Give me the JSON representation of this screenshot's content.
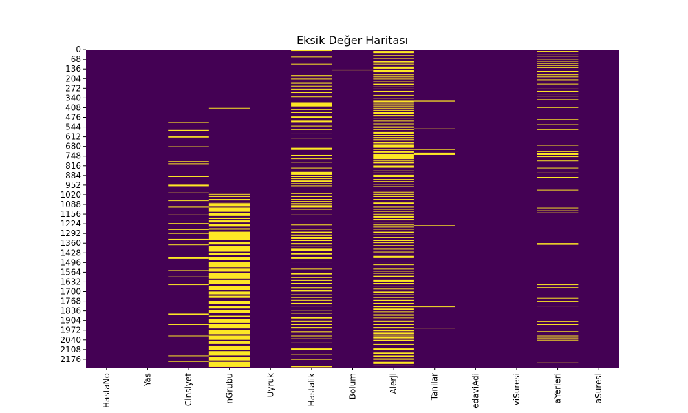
{
  "chart_data": {
    "type": "heatmap",
    "title": "Eksik Değer Haritası",
    "xlabel": "",
    "ylabel": "",
    "columns": [
      "HastaNo",
      "Yas",
      "Cinsiyet",
      "KanGrubu",
      "Uyruk",
      "KronikHastalik",
      "Bolum",
      "Alerji",
      "Tanilar",
      "TedaviAdi",
      "TedaviSuresi",
      "UygulamaYerleri",
      "UygulamaSuresi"
    ],
    "x_tick_labels_visible": [
      "HastaNo",
      "Yas",
      "Cinsiyet",
      "nGrubu",
      "Uyruk",
      "Hastalik",
      "Bolum",
      "Alerji",
      "Tanilar",
      "edaviAdi",
      "viSuresi",
      "aYerleri",
      "aSuresi"
    ],
    "y_tick_labels": [
      "0",
      "68",
      "136",
      "204",
      "272",
      "340",
      "408",
      "476",
      "544",
      "612",
      "680",
      "748",
      "816",
      "884",
      "952",
      "1020",
      "1088",
      "1156",
      "1224",
      "1292",
      "1360",
      "1428",
      "1496",
      "1564",
      "1632",
      "1700",
      "1768",
      "1836",
      "1904",
      "1972",
      "2040",
      "2108",
      "2176"
    ],
    "n_rows": 2235,
    "colors": {
      "present": "#440154",
      "missing": "#fde725"
    },
    "missing_ranges": {
      "HastaNo": [],
      "Yas": [],
      "Cinsiyet": [
        [
          510,
          513
        ],
        [
          565,
          575
        ],
        [
          610,
          618
        ],
        [
          680,
          683
        ],
        [
          785,
          788
        ],
        [
          800,
          803
        ],
        [
          890,
          893
        ],
        [
          950,
          960
        ],
        [
          1005,
          1010
        ],
        [
          1060,
          1063
        ],
        [
          1100,
          1110
        ],
        [
          1160,
          1163
        ],
        [
          1195,
          1198
        ],
        [
          1220,
          1225
        ],
        [
          1262,
          1265
        ],
        [
          1290,
          1293
        ],
        [
          1330,
          1340
        ],
        [
          1370,
          1373
        ],
        [
          1460,
          1470
        ],
        [
          1550,
          1553
        ],
        [
          1595,
          1598
        ],
        [
          1650,
          1653
        ],
        [
          1855,
          1865
        ],
        [
          1930,
          1933
        ],
        [
          2010,
          2013
        ],
        [
          2150,
          2153
        ],
        [
          2190,
          2193
        ]
      ],
      "KanGrubu": [
        [
          410,
          414
        ],
        [
          1015,
          1018
        ],
        [
          1030,
          1033
        ],
        [
          1040,
          1043
        ],
        [
          1050,
          1060
        ],
        [
          1070,
          1073
        ],
        [
          1080,
          1100
        ],
        [
          1110,
          1140
        ],
        [
          1150,
          1170
        ],
        [
          1180,
          1190
        ],
        [
          1200,
          1215
        ],
        [
          1225,
          1245
        ],
        [
          1255,
          1265
        ],
        [
          1280,
          1340
        ],
        [
          1350,
          1370
        ],
        [
          1380,
          1420
        ],
        [
          1430,
          1445
        ],
        [
          1460,
          1480
        ],
        [
          1490,
          1530
        ],
        [
          1540,
          1560
        ],
        [
          1570,
          1610
        ],
        [
          1620,
          1645
        ],
        [
          1660,
          1690
        ],
        [
          1700,
          1720
        ],
        [
          1730,
          1745
        ],
        [
          1770,
          1790
        ],
        [
          1800,
          1820
        ],
        [
          1830,
          1850
        ],
        [
          1870,
          1880
        ],
        [
          1895,
          1920
        ],
        [
          1930,
          1960
        ],
        [
          1970,
          2000
        ],
        [
          2010,
          2040
        ],
        [
          2050,
          2070
        ],
        [
          2080,
          2110
        ],
        [
          2120,
          2150
        ],
        [
          2160,
          2185
        ],
        [
          2195,
          2230
        ]
      ],
      "Uyruk": [],
      "KronikHastalik": [
        [
          5,
          10
        ],
        [
          50,
          55
        ],
        [
          100,
          103
        ],
        [
          180,
          190
        ],
        [
          205,
          210
        ],
        [
          230,
          240
        ],
        [
          255,
          260
        ],
        [
          275,
          285
        ],
        [
          300,
          305
        ],
        [
          330,
          335
        ],
        [
          370,
          400
        ],
        [
          420,
          425
        ],
        [
          440,
          443
        ],
        [
          470,
          480
        ],
        [
          500,
          510
        ],
        [
          535,
          540
        ],
        [
          560,
          565
        ],
        [
          590,
          595
        ],
        [
          620,
          625
        ],
        [
          690,
          705
        ],
        [
          740,
          745
        ],
        [
          765,
          768
        ],
        [
          790,
          795
        ],
        [
          830,
          835
        ],
        [
          860,
          880
        ],
        [
          890,
          895
        ],
        [
          905,
          910
        ],
        [
          920,
          930
        ],
        [
          940,
          945
        ],
        [
          955,
          960
        ],
        [
          1010,
          1013
        ],
        [
          1030,
          1035
        ],
        [
          1050,
          1055
        ],
        [
          1065,
          1070
        ],
        [
          1080,
          1090
        ],
        [
          1095,
          1110
        ],
        [
          1120,
          1125
        ],
        [
          1160,
          1165
        ],
        [
          1230,
          1235
        ],
        [
          1260,
          1265
        ],
        [
          1280,
          1290
        ],
        [
          1300,
          1310
        ],
        [
          1320,
          1330
        ],
        [
          1340,
          1345
        ],
        [
          1360,
          1370
        ],
        [
          1380,
          1385
        ],
        [
          1400,
          1415
        ],
        [
          1430,
          1440
        ],
        [
          1460,
          1470
        ],
        [
          1490,
          1495
        ],
        [
          1540,
          1545
        ],
        [
          1570,
          1580
        ],
        [
          1600,
          1605
        ],
        [
          1620,
          1625
        ],
        [
          1640,
          1645
        ],
        [
          1670,
          1680
        ],
        [
          1690,
          1700
        ],
        [
          1720,
          1725
        ],
        [
          1740,
          1745
        ],
        [
          1760,
          1765
        ],
        [
          1780,
          1790
        ],
        [
          1800,
          1805
        ],
        [
          1830,
          1835
        ],
        [
          1850,
          1855
        ],
        [
          1880,
          1890
        ],
        [
          1905,
          1915
        ],
        [
          1930,
          1935
        ],
        [
          1950,
          1960
        ],
        [
          1980,
          1990
        ],
        [
          2010,
          2015
        ],
        [
          2030,
          2035
        ],
        [
          2060,
          2065
        ],
        [
          2100,
          2110
        ],
        [
          2140,
          2145
        ],
        [
          2175,
          2180
        ],
        [
          2225,
          2232
        ]
      ],
      "Bolum": [
        [
          140,
          146
        ]
      ],
      "Alerji": [
        [
          10,
          25
        ],
        [
          40,
          45
        ],
        [
          60,
          65
        ],
        [
          80,
          90
        ],
        [
          100,
          105
        ],
        [
          120,
          135
        ],
        [
          145,
          160
        ],
        [
          175,
          180
        ],
        [
          190,
          195
        ],
        [
          205,
          210
        ],
        [
          220,
          225
        ],
        [
          240,
          250
        ],
        [
          260,
          265
        ],
        [
          275,
          280
        ],
        [
          290,
          300
        ],
        [
          310,
          315
        ],
        [
          320,
          325
        ],
        [
          340,
          345
        ],
        [
          360,
          370
        ],
        [
          380,
          385
        ],
        [
          395,
          400
        ],
        [
          410,
          415
        ],
        [
          425,
          430
        ],
        [
          440,
          450
        ],
        [
          460,
          470
        ],
        [
          480,
          485
        ],
        [
          500,
          505
        ],
        [
          520,
          525
        ],
        [
          540,
          550
        ],
        [
          560,
          565
        ],
        [
          580,
          590
        ],
        [
          600,
          605
        ],
        [
          615,
          625
        ],
        [
          630,
          640
        ],
        [
          650,
          660
        ],
        [
          665,
          690
        ],
        [
          700,
          705
        ],
        [
          715,
          725
        ],
        [
          735,
          770
        ],
        [
          780,
          785
        ],
        [
          790,
          800
        ],
        [
          815,
          830
        ],
        [
          850,
          855
        ],
        [
          865,
          870
        ],
        [
          880,
          885
        ],
        [
          890,
          895
        ],
        [
          910,
          915
        ],
        [
          925,
          930
        ],
        [
          945,
          950
        ],
        [
          960,
          965
        ],
        [
          1000,
          1005
        ],
        [
          1015,
          1020
        ],
        [
          1030,
          1035
        ],
        [
          1050,
          1055
        ],
        [
          1075,
          1085
        ],
        [
          1100,
          1110
        ],
        [
          1120,
          1125
        ],
        [
          1135,
          1140
        ],
        [
          1155,
          1160
        ],
        [
          1170,
          1180
        ],
        [
          1190,
          1200
        ],
        [
          1210,
          1215
        ],
        [
          1230,
          1235
        ],
        [
          1245,
          1250
        ],
        [
          1260,
          1265
        ],
        [
          1280,
          1290
        ],
        [
          1300,
          1305
        ],
        [
          1320,
          1325
        ],
        [
          1340,
          1345
        ],
        [
          1355,
          1360
        ],
        [
          1375,
          1380
        ],
        [
          1400,
          1405
        ],
        [
          1420,
          1425
        ],
        [
          1450,
          1465
        ],
        [
          1490,
          1495
        ],
        [
          1510,
          1515
        ],
        [
          1540,
          1545
        ],
        [
          1555,
          1560
        ],
        [
          1570,
          1575
        ],
        [
          1590,
          1600
        ],
        [
          1620,
          1630
        ],
        [
          1640,
          1650
        ],
        [
          1660,
          1665
        ],
        [
          1680,
          1685
        ],
        [
          1700,
          1710
        ],
        [
          1720,
          1725
        ],
        [
          1740,
          1745
        ],
        [
          1760,
          1770
        ],
        [
          1780,
          1785
        ],
        [
          1800,
          1810
        ],
        [
          1820,
          1830
        ],
        [
          1840,
          1845
        ],
        [
          1860,
          1870
        ],
        [
          1880,
          1885
        ],
        [
          1890,
          1895
        ],
        [
          1905,
          1915
        ],
        [
          1930,
          1935
        ],
        [
          1950,
          1960
        ],
        [
          1970,
          1980
        ],
        [
          1990,
          2000
        ],
        [
          2010,
          2015
        ],
        [
          2020,
          2030
        ],
        [
          2040,
          2050
        ],
        [
          2070,
          2075
        ],
        [
          2100,
          2110
        ],
        [
          2130,
          2140
        ],
        [
          2150,
          2160
        ],
        [
          2170,
          2180
        ],
        [
          2195,
          2210
        ],
        [
          2220,
          2225
        ]
      ],
      "Tanilar": [
        [
          360,
          366
        ],
        [
          555,
          558
        ],
        [
          700,
          703
        ],
        [
          725,
          740
        ],
        [
          1235,
          1238
        ],
        [
          1805,
          1808
        ],
        [
          1955,
          1960
        ]
      ],
      "TedaviAdi": [],
      "TedaviSuresi": [],
      "UygulamaYerleri": [
        [
          10,
          13
        ],
        [
          30,
          33
        ],
        [
          45,
          50
        ],
        [
          65,
          68
        ],
        [
          80,
          83
        ],
        [
          95,
          100
        ],
        [
          110,
          113
        ],
        [
          125,
          128
        ],
        [
          150,
          155
        ],
        [
          175,
          180
        ],
        [
          190,
          195
        ],
        [
          210,
          215
        ],
        [
          240,
          243
        ],
        [
          275,
          280
        ],
        [
          290,
          295
        ],
        [
          310,
          315
        ],
        [
          325,
          330
        ],
        [
          350,
          355
        ],
        [
          405,
          410
        ],
        [
          490,
          493
        ],
        [
          525,
          530
        ],
        [
          560,
          563
        ],
        [
          670,
          673
        ],
        [
          715,
          720
        ],
        [
          730,
          740
        ],
        [
          750,
          755
        ],
        [
          780,
          783
        ],
        [
          830,
          833
        ],
        [
          865,
          870
        ],
        [
          895,
          900
        ],
        [
          985,
          988
        ],
        [
          1105,
          1108
        ],
        [
          1115,
          1118
        ],
        [
          1130,
          1133
        ],
        [
          1145,
          1148
        ],
        [
          1360,
          1372
        ],
        [
          1650,
          1653
        ],
        [
          1670,
          1673
        ],
        [
          1745,
          1748
        ],
        [
          1770,
          1773
        ],
        [
          1800,
          1803
        ],
        [
          1910,
          1913
        ],
        [
          1930,
          1933
        ],
        [
          1980,
          1985
        ],
        [
          2010,
          2015
        ],
        [
          2025,
          2030
        ],
        [
          2040,
          2043
        ],
        [
          2200,
          2205
        ]
      ],
      "UygulamaSuresi": []
    }
  }
}
